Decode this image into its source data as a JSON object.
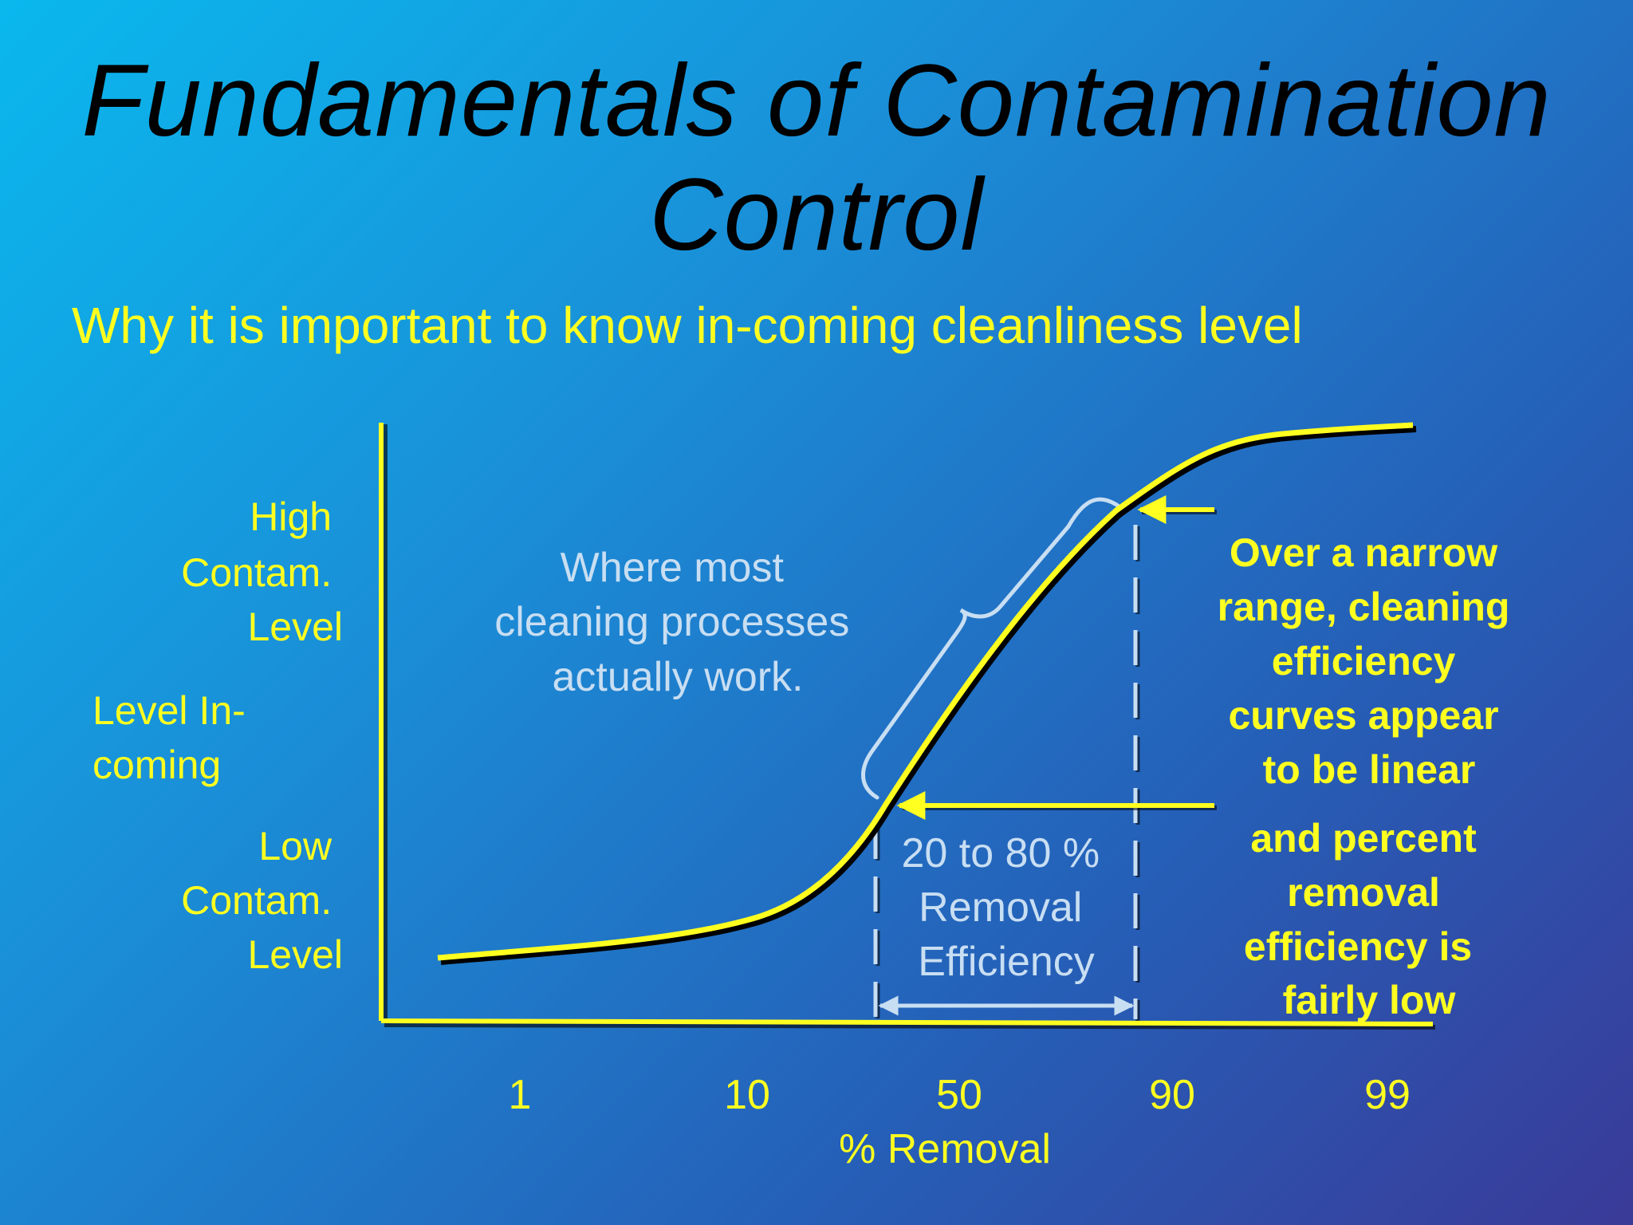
{
  "slide": {
    "title_line1": "Fundamentals of Contamination",
    "title_line2": "Control",
    "subtitle": "Why it is important to know in-coming cleanliness level"
  },
  "diagram": {
    "y_labels": {
      "high": [
        "High",
        "Contam.",
        "Level"
      ],
      "incoming": [
        "Level In-",
        "coming"
      ],
      "low": [
        "Low",
        "Contam.",
        "Level"
      ]
    },
    "x_ticks": [
      "1",
      "10",
      "50",
      "90",
      "99"
    ],
    "x_label": "% Removal",
    "note_where": [
      "Where most",
      "cleaning processes",
      "actually work."
    ],
    "range_label": [
      "20 to 80 %",
      "Removal",
      "Efficiency"
    ],
    "note_linear": [
      "Over a narrow",
      "range, cleaning",
      "efficiency",
      "curves appear",
      "to be linear"
    ],
    "note_low": [
      "and percent",
      "removal",
      "efficiency is",
      "fairly low"
    ],
    "colors": {
      "accent": "#ffff20",
      "light": "#c8def2",
      "title": "#000000"
    }
  }
}
